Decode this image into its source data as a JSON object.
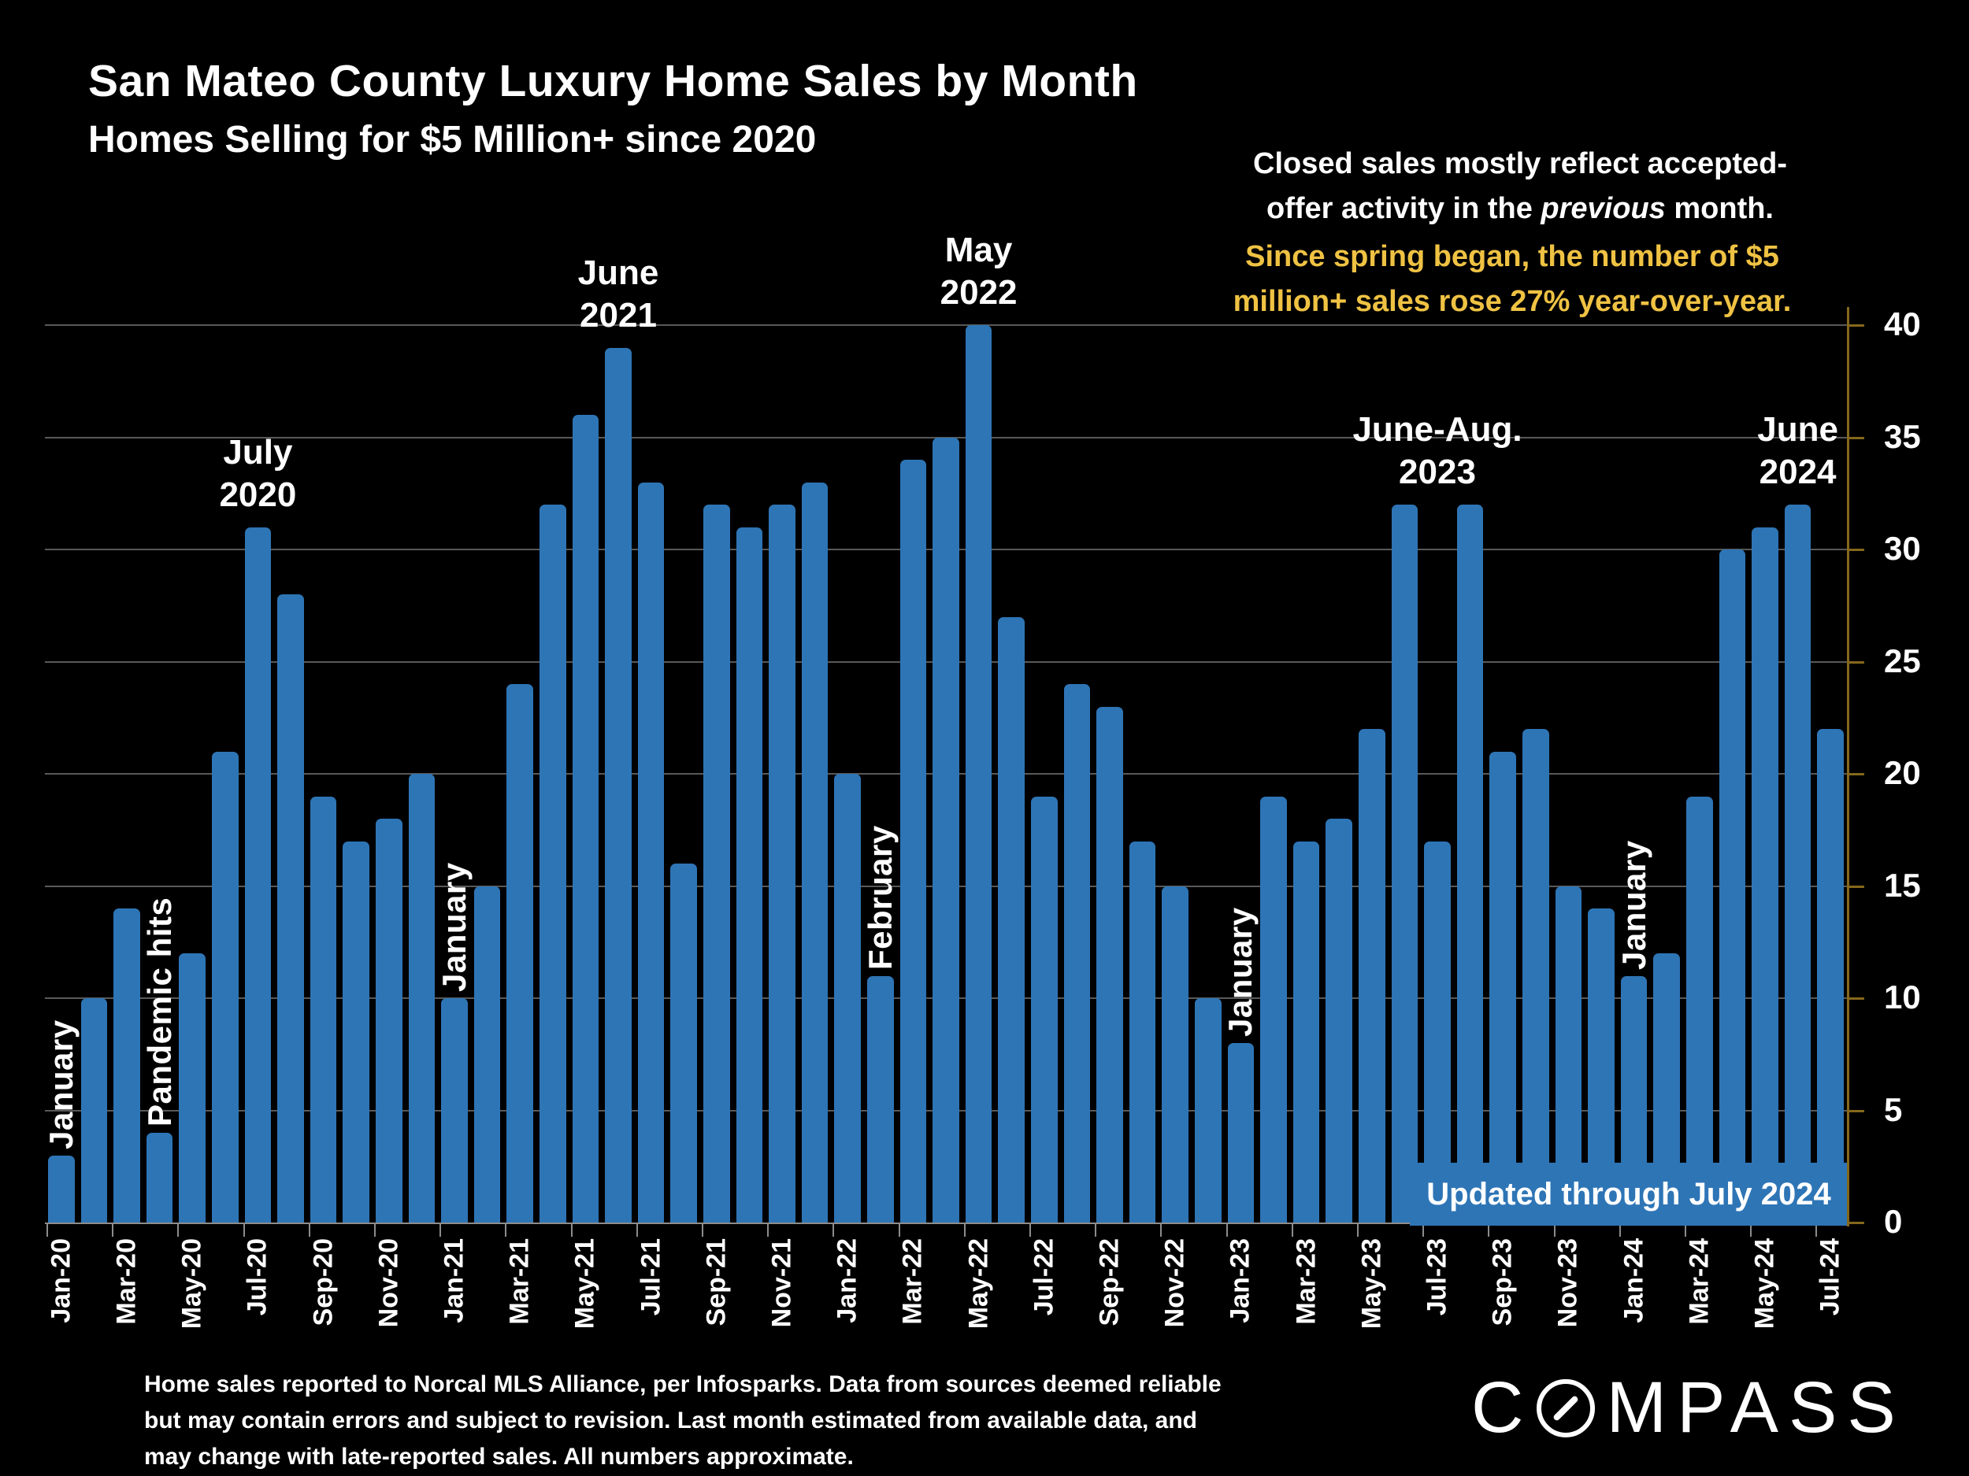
{
  "title": "San Mateo County Luxury Home Sales by Month",
  "subtitle": "Homes Selling for $5 Million+ since 2020",
  "note_white": {
    "line1": "Closed sales mostly reflect accepted-",
    "line2_pre": "offer activity in the ",
    "line2_italic": "previous",
    "line2_post": " month."
  },
  "note_yellow": {
    "line1": "Since spring began, the number of $5",
    "line2": "million+ sales rose 27% year-over-year."
  },
  "banner": {
    "label": "Updated through July 2024"
  },
  "footnote": {
    "lines": [
      "Home sales reported to Norcal MLS Alliance, per Infosparks. Data from sources deemed reliable",
      "but may contain errors and subject to revision.  Last month estimated from available data, and",
      "may change with late-reported sales. All numbers approximate."
    ]
  },
  "logo": {
    "part1": "C",
    "part2": "MPASS"
  },
  "colors": {
    "background": "#000000",
    "bar_blue": "#2E75B6",
    "banner_blue": "#2E75B6",
    "gridline_gray": "#595959",
    "x_axis_gray": "#8C8C8C",
    "y_axis_gold": "#85681C",
    "note_yellow": "#EFC243",
    "text_white": "#FFFFFF"
  },
  "chart_data": {
    "type": "bar",
    "title": "San Mateo County Luxury Home Sales by Month",
    "xlabel": "",
    "ylabel": "",
    "ylim": [
      0,
      40
    ],
    "yticks": [
      0,
      5,
      10,
      15,
      20,
      25,
      30,
      35,
      40
    ],
    "grid": true,
    "legend": "none",
    "x_label_interval": 2,
    "categories": [
      "Jan-20",
      "Feb-20",
      "Mar-20",
      "Apr-20",
      "May-20",
      "Jun-20",
      "Jul-20",
      "Aug-20",
      "Sep-20",
      "Oct-20",
      "Nov-20",
      "Dec-20",
      "Jan-21",
      "Feb-21",
      "Mar-21",
      "Apr-21",
      "May-21",
      "Jun-21",
      "Jul-21",
      "Aug-21",
      "Sep-21",
      "Oct-21",
      "Nov-21",
      "Dec-21",
      "Jan-22",
      "Feb-22",
      "Mar-22",
      "Apr-22",
      "May-22",
      "Jun-22",
      "Jul-22",
      "Aug-22",
      "Sep-22",
      "Oct-22",
      "Nov-22",
      "Dec-22",
      "Jan-23",
      "Feb-23",
      "Mar-23",
      "Apr-23",
      "May-23",
      "Jun-23",
      "Jul-23",
      "Aug-23",
      "Sep-23",
      "Oct-23",
      "Nov-23",
      "Dec-23",
      "Jan-24",
      "Feb-24",
      "Mar-24",
      "Apr-24",
      "May-24",
      "Jun-24",
      "Jul-24"
    ],
    "values": [
      3,
      10,
      14,
      4,
      12,
      21,
      31,
      28,
      19,
      17,
      18,
      20,
      10,
      15,
      24,
      32,
      36,
      39,
      33,
      16,
      32,
      31,
      32,
      33,
      20,
      11,
      34,
      35,
      40,
      27,
      19,
      24,
      23,
      17,
      15,
      10,
      8,
      19,
      17,
      18,
      22,
      32,
      17,
      32,
      21,
      22,
      15,
      14,
      11,
      12,
      19,
      30,
      31,
      32,
      22
    ],
    "annotations": [
      {
        "style": "stacked",
        "lines": [
          "July",
          "2020"
        ],
        "bar_index": 6,
        "ref_value": 31
      },
      {
        "style": "stacked",
        "lines": [
          "June",
          "2021"
        ],
        "bar_index": 17,
        "ref_value": 39
      },
      {
        "style": "stacked",
        "lines": [
          "May",
          "2022"
        ],
        "bar_index": 28,
        "ref_value": 40
      },
      {
        "style": "stacked",
        "lines": [
          "June-Aug.",
          "2023"
        ],
        "bar_index": 42,
        "ref_value": 32
      },
      {
        "style": "stacked",
        "lines": [
          "June",
          "2024"
        ],
        "bar_index": 53,
        "ref_value": 32
      },
      {
        "style": "vertical",
        "text": "January",
        "bar_index": 0
      },
      {
        "style": "vertical",
        "text": "Pandemic hits",
        "bar_index": 3
      },
      {
        "style": "vertical",
        "text": "January",
        "bar_index": 12
      },
      {
        "style": "vertical",
        "text": "February",
        "bar_index": 25
      },
      {
        "style": "vertical",
        "text": "January",
        "bar_index": 36
      },
      {
        "style": "vertical",
        "text": "January",
        "bar_index": 48
      }
    ]
  }
}
